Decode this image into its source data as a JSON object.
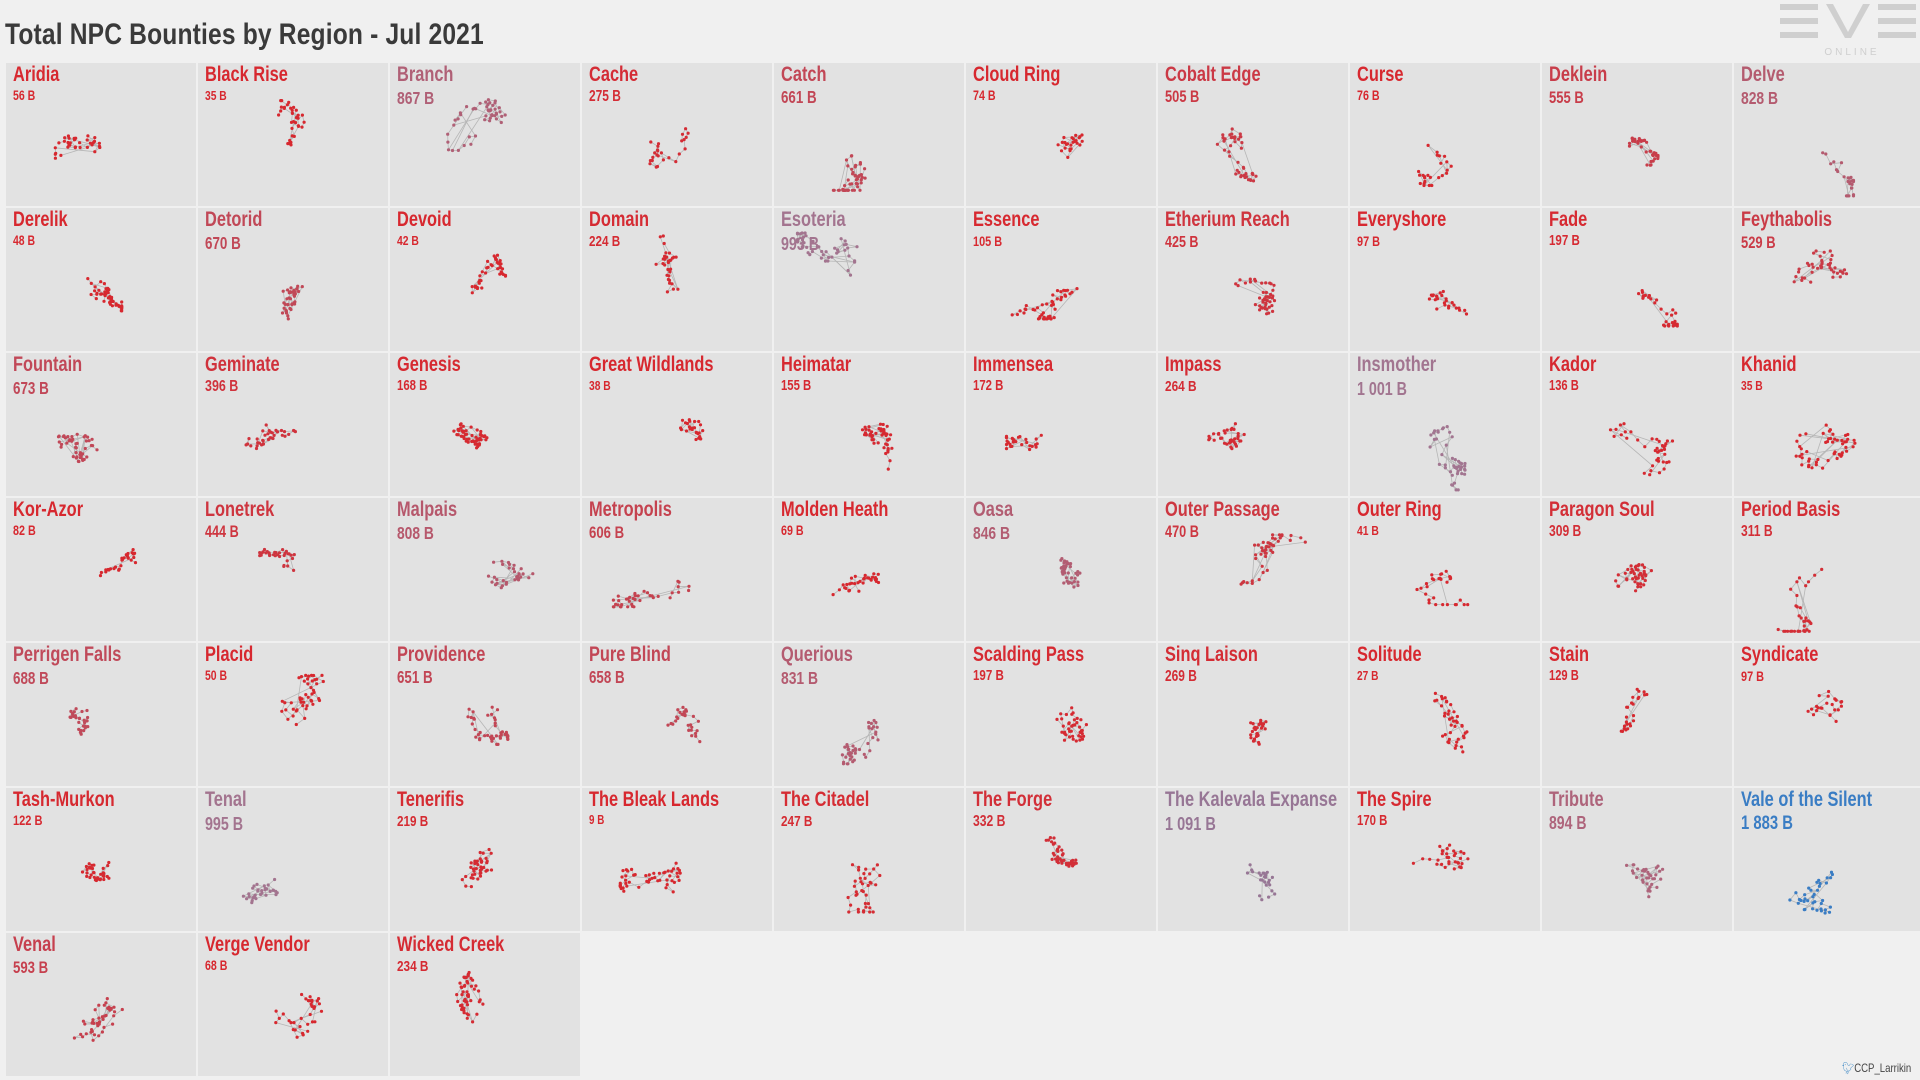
{
  "title": "Total NPC Bounties by Region - Jul 2021",
  "logo": {
    "word": "EVE",
    "sub": "ONLINE"
  },
  "credit": "CCP_Larrikin",
  "chart_data": {
    "type": "small-multiples",
    "unit": "B",
    "color_scale": {
      "low": "#d7282f",
      "mid": "#a27590",
      "high": "#3a7dc4"
    },
    "regions": [
      {
        "name": "Aridia",
        "value": 56,
        "label": "56 B"
      },
      {
        "name": "Black Rise",
        "value": 35,
        "label": "35 B"
      },
      {
        "name": "Branch",
        "value": 867,
        "label": "867 B"
      },
      {
        "name": "Cache",
        "value": 275,
        "label": "275 B"
      },
      {
        "name": "Catch",
        "value": 661,
        "label": "661 B"
      },
      {
        "name": "Cloud Ring",
        "value": 74,
        "label": "74 B"
      },
      {
        "name": "Cobalt Edge",
        "value": 505,
        "label": "505 B"
      },
      {
        "name": "Curse",
        "value": 76,
        "label": "76 B"
      },
      {
        "name": "Deklein",
        "value": 555,
        "label": "555 B"
      },
      {
        "name": "Delve",
        "value": 828,
        "label": "828 B"
      },
      {
        "name": "Derelik",
        "value": 48,
        "label": "48 B"
      },
      {
        "name": "Detorid",
        "value": 670,
        "label": "670 B"
      },
      {
        "name": "Devoid",
        "value": 42,
        "label": "42 B"
      },
      {
        "name": "Domain",
        "value": 224,
        "label": "224 B"
      },
      {
        "name": "Esoteria",
        "value": 993,
        "label": "993 B"
      },
      {
        "name": "Essence",
        "value": 105,
        "label": "105 B"
      },
      {
        "name": "Etherium Reach",
        "value": 425,
        "label": "425 B"
      },
      {
        "name": "Everyshore",
        "value": 97,
        "label": "97 B"
      },
      {
        "name": "Fade",
        "value": 197,
        "label": "197 B"
      },
      {
        "name": "Feythabolis",
        "value": 529,
        "label": "529 B"
      },
      {
        "name": "Fountain",
        "value": 673,
        "label": "673 B"
      },
      {
        "name": "Geminate",
        "value": 396,
        "label": "396 B"
      },
      {
        "name": "Genesis",
        "value": 168,
        "label": "168 B"
      },
      {
        "name": "Great Wildlands",
        "value": 38,
        "label": "38 B"
      },
      {
        "name": "Heimatar",
        "value": 155,
        "label": "155 B"
      },
      {
        "name": "Immensea",
        "value": 172,
        "label": "172 B"
      },
      {
        "name": "Impass",
        "value": 264,
        "label": "264 B"
      },
      {
        "name": "Insmother",
        "value": 1001,
        "label": "1 001 B"
      },
      {
        "name": "Kador",
        "value": 136,
        "label": "136 B"
      },
      {
        "name": "Khanid",
        "value": 35,
        "label": "35 B"
      },
      {
        "name": "Kor-Azor",
        "value": 82,
        "label": "82 B"
      },
      {
        "name": "Lonetrek",
        "value": 444,
        "label": "444 B"
      },
      {
        "name": "Malpais",
        "value": 808,
        "label": "808 B"
      },
      {
        "name": "Metropolis",
        "value": 606,
        "label": "606 B"
      },
      {
        "name": "Molden Heath",
        "value": 69,
        "label": "69 B"
      },
      {
        "name": "Oasa",
        "value": 846,
        "label": "846 B"
      },
      {
        "name": "Outer Passage",
        "value": 470,
        "label": "470 B"
      },
      {
        "name": "Outer Ring",
        "value": 41,
        "label": "41 B"
      },
      {
        "name": "Paragon Soul",
        "value": 309,
        "label": "309 B"
      },
      {
        "name": "Period Basis",
        "value": 311,
        "label": "311 B"
      },
      {
        "name": "Perrigen Falls",
        "value": 688,
        "label": "688 B"
      },
      {
        "name": "Placid",
        "value": 50,
        "label": "50 B"
      },
      {
        "name": "Providence",
        "value": 651,
        "label": "651 B"
      },
      {
        "name": "Pure Blind",
        "value": 658,
        "label": "658 B"
      },
      {
        "name": "Querious",
        "value": 831,
        "label": "831 B"
      },
      {
        "name": "Scalding Pass",
        "value": 197,
        "label": "197 B"
      },
      {
        "name": "Sinq Laison",
        "value": 269,
        "label": "269 B"
      },
      {
        "name": "Solitude",
        "value": 27,
        "label": "27 B"
      },
      {
        "name": "Stain",
        "value": 129,
        "label": "129 B"
      },
      {
        "name": "Syndicate",
        "value": 97,
        "label": "97 B"
      },
      {
        "name": "Tash-Murkon",
        "value": 122,
        "label": "122 B"
      },
      {
        "name": "Tenal",
        "value": 995,
        "label": "995 B"
      },
      {
        "name": "Tenerifis",
        "value": 219,
        "label": "219 B"
      },
      {
        "name": "The Bleak Lands",
        "value": 9,
        "label": "9 B"
      },
      {
        "name": "The Citadel",
        "value": 247,
        "label": "247 B"
      },
      {
        "name": "The Forge",
        "value": 332,
        "label": "332 B"
      },
      {
        "name": "The Kalevala Expanse",
        "value": 1091,
        "label": "1 091 B"
      },
      {
        "name": "The Spire",
        "value": 170,
        "label": "170 B"
      },
      {
        "name": "Tribute",
        "value": 894,
        "label": "894 B"
      },
      {
        "name": "Vale of the Silent",
        "value": 1883,
        "label": "1 883 B"
      },
      {
        "name": "Venal",
        "value": 593,
        "label": "593 B"
      },
      {
        "name": "Verge Vendor",
        "value": 68,
        "label": "68 B"
      },
      {
        "name": "Wicked Creek",
        "value": 234,
        "label": "234 B"
      }
    ]
  }
}
